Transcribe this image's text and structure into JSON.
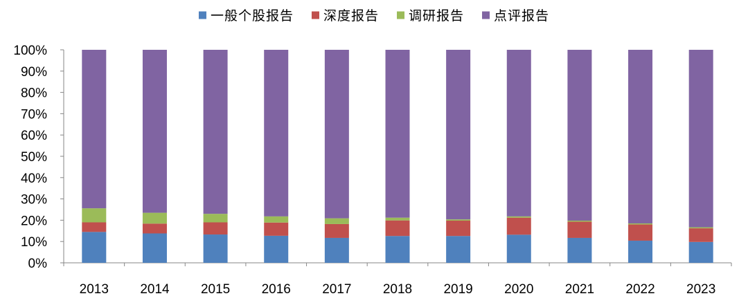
{
  "chart_data": {
    "type": "bar",
    "stacked": true,
    "categories": [
      "2013",
      "2014",
      "2015",
      "2016",
      "2017",
      "2018",
      "2019",
      "2020",
      "2021",
      "2022",
      "2023"
    ],
    "series": [
      {
        "name": "一般个股报告",
        "color": "#4F81BD",
        "values": [
          14.5,
          13.8,
          13.3,
          12.7,
          11.7,
          12.6,
          12.6,
          13.2,
          11.7,
          10.4,
          9.8
        ]
      },
      {
        "name": "深度报告",
        "color": "#C0504D",
        "values": [
          4.5,
          4.6,
          5.7,
          6.2,
          6.5,
          7.3,
          7.2,
          8.0,
          7.6,
          7.6,
          6.4
        ]
      },
      {
        "name": "调研报告",
        "color": "#9BBB59",
        "values": [
          6.6,
          5.1,
          4.0,
          2.9,
          2.7,
          1.3,
          0.6,
          0.6,
          0.5,
          0.5,
          0.5
        ]
      },
      {
        "name": "点评报告",
        "color": "#8064A2",
        "values": [
          74.4,
          76.5,
          77.0,
          78.2,
          79.1,
          78.8,
          79.6,
          78.2,
          80.2,
          81.5,
          83.3
        ]
      }
    ],
    "y_ticks": [
      "0%",
      "10%",
      "20%",
      "30%",
      "40%",
      "50%",
      "60%",
      "70%",
      "80%",
      "90%",
      "100%"
    ],
    "ylim": [
      0,
      100
    ],
    "legend_position": "top-center",
    "grid": false,
    "title": "",
    "xlabel": "",
    "ylabel": ""
  }
}
